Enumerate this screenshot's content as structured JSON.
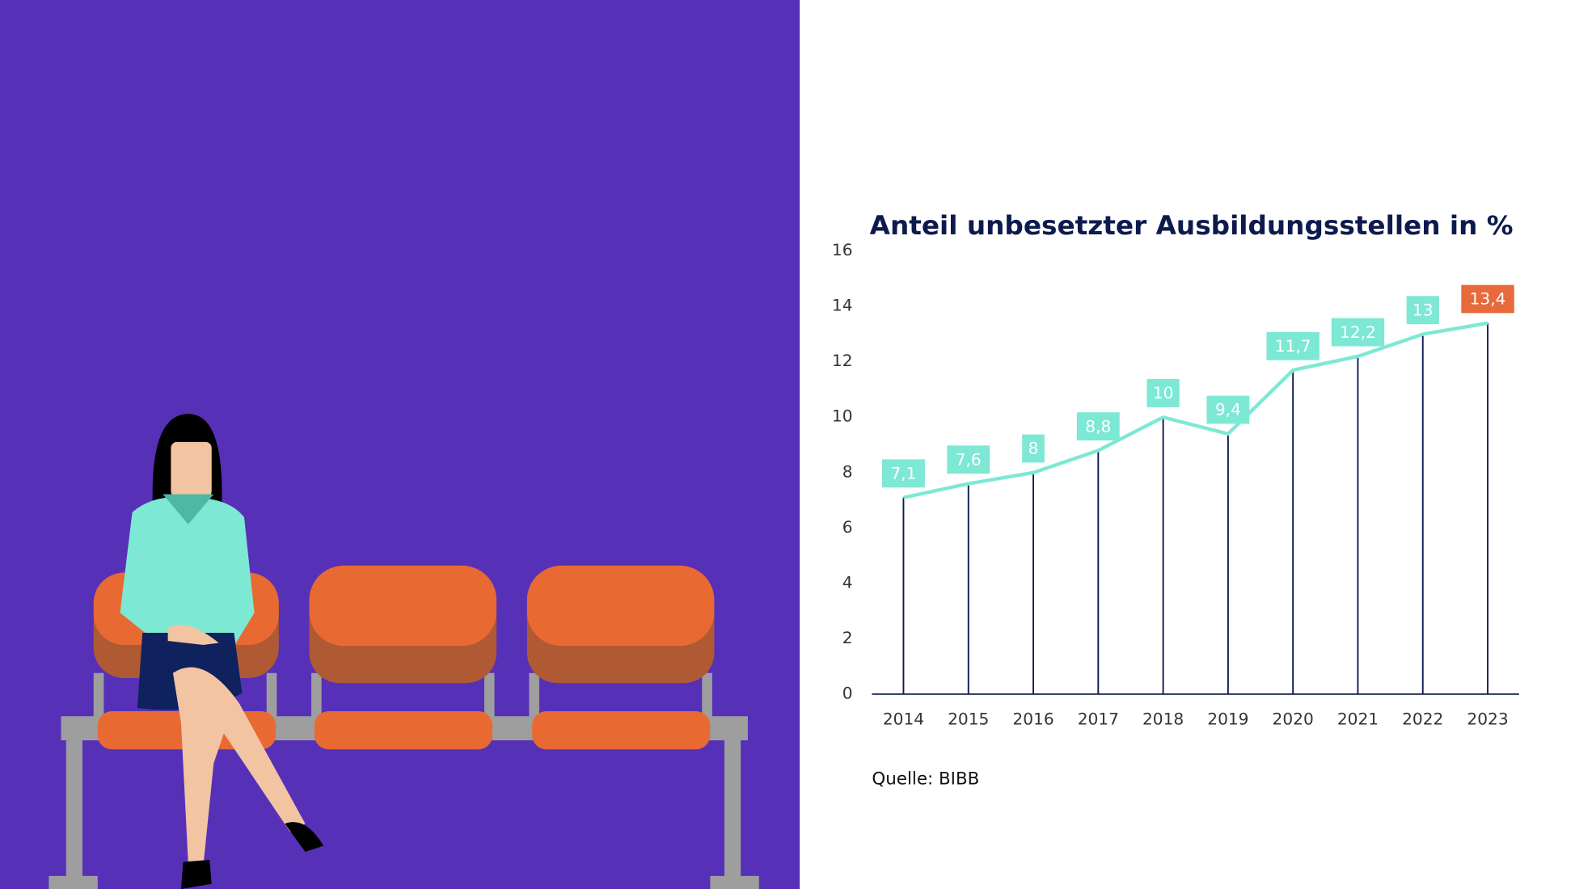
{
  "chart_data": {
    "type": "line",
    "title": "Anteil unbesetzter Ausbildungsstellen in %",
    "source": "Quelle: BIBB",
    "categories": [
      "2014",
      "2015",
      "2016",
      "2017",
      "2018",
      "2019",
      "2020",
      "2021",
      "2022",
      "2023"
    ],
    "series": [
      {
        "color": "#7de8d4",
        "values": [
          7.1,
          7.6,
          8,
          8.8,
          10,
          9.4,
          11.7,
          12.2,
          13,
          13.4
        ],
        "value_labels": [
          "7,1",
          "7,6",
          "8",
          "8,8",
          "10",
          "9,4",
          "11,7",
          "12,2",
          "13",
          "13,4"
        ],
        "label_colors": [
          "#7de8d4",
          "#7de8d4",
          "#7de8d4",
          "#7de8d4",
          "#7de8d4",
          "#7de8d4",
          "#7de8d4",
          "#7de8d4",
          "#7de8d4",
          "#e8693a"
        ]
      }
    ],
    "drop_line_color": "#0d1a4d",
    "ylim": [
      0,
      16
    ],
    "yticks": [
      0,
      2,
      4,
      6,
      8,
      10,
      12,
      14,
      16
    ]
  }
}
